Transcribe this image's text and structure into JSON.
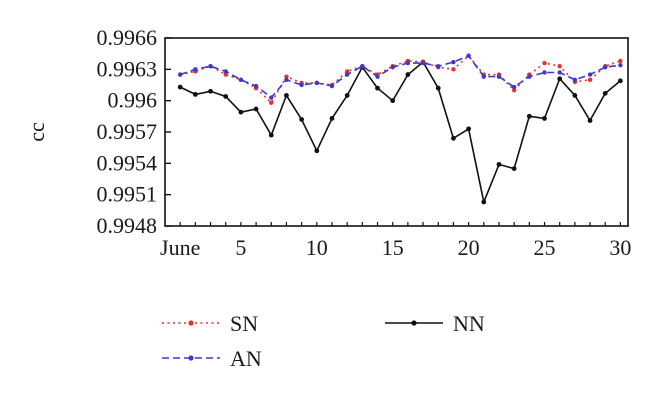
{
  "chart_data": {
    "type": "line",
    "ylabel": "cc",
    "xlabel": "",
    "x": [
      1,
      2,
      3,
      4,
      5,
      6,
      7,
      8,
      9,
      10,
      11,
      12,
      13,
      14,
      15,
      16,
      17,
      18,
      19,
      20,
      21,
      22,
      23,
      24,
      25,
      26,
      27,
      28,
      29,
      30
    ],
    "xlim": [
      0,
      30.5
    ],
    "ylim": [
      0.9948,
      0.9966
    ],
    "x_ticks": [
      {
        "value": 1,
        "label": "June"
      },
      {
        "value": 5,
        "label": "5"
      },
      {
        "value": 10,
        "label": "10"
      },
      {
        "value": 15,
        "label": "15"
      },
      {
        "value": 20,
        "label": "20"
      },
      {
        "value": 25,
        "label": "25"
      },
      {
        "value": 30,
        "label": "30"
      }
    ],
    "y_ticks": [
      {
        "value": 0.9948,
        "label": "0.9948"
      },
      {
        "value": 0.9951,
        "label": "0.9951"
      },
      {
        "value": 0.9954,
        "label": "0.9954"
      },
      {
        "value": 0.9957,
        "label": "0.9957"
      },
      {
        "value": 0.996,
        "label": "0.996"
      },
      {
        "value": 0.9963,
        "label": "0.9963"
      },
      {
        "value": 0.9966,
        "label": "0.9966"
      }
    ],
    "legend_position": "bottom",
    "series": [
      {
        "name": "SN",
        "color": "#e8312a",
        "style": "dotted",
        "marker": "dot",
        "values": [
          0.99625,
          0.99628,
          0.99633,
          0.99625,
          0.9962,
          0.99612,
          0.99598,
          0.99623,
          0.99617,
          0.99617,
          0.99615,
          0.99628,
          0.99633,
          0.99625,
          0.99633,
          0.99638,
          0.99637,
          0.99632,
          0.9963,
          0.99643,
          0.99625,
          0.99625,
          0.9961,
          0.99625,
          0.99636,
          0.99633,
          0.99618,
          0.9962,
          0.99633,
          0.99638
        ]
      },
      {
        "name": "AN",
        "color": "#3a3ad0",
        "style": "dashed",
        "marker": "dot",
        "values": [
          0.99625,
          0.9963,
          0.99633,
          0.99628,
          0.9962,
          0.99614,
          0.99603,
          0.9962,
          0.99615,
          0.99617,
          0.99614,
          0.99625,
          0.99633,
          0.99623,
          0.99632,
          0.99636,
          0.99636,
          0.99633,
          0.99637,
          0.99643,
          0.99623,
          0.99623,
          0.99613,
          0.99623,
          0.99627,
          0.99627,
          0.9962,
          0.99625,
          0.99632,
          0.99634
        ]
      },
      {
        "name": "NN",
        "color": "#111111",
        "style": "solid",
        "marker": "dot",
        "values": [
          0.99613,
          0.99606,
          0.99609,
          0.99604,
          0.99589,
          0.99592,
          0.99567,
          0.99605,
          0.99582,
          0.99552,
          0.99583,
          0.99605,
          0.99632,
          0.99612,
          0.996,
          0.99625,
          0.99637,
          0.99612,
          0.99564,
          0.99573,
          0.99503,
          0.99539,
          0.99535,
          0.99585,
          0.99583,
          0.99621,
          0.99605,
          0.99581,
          0.99607,
          0.99619
        ]
      }
    ]
  }
}
